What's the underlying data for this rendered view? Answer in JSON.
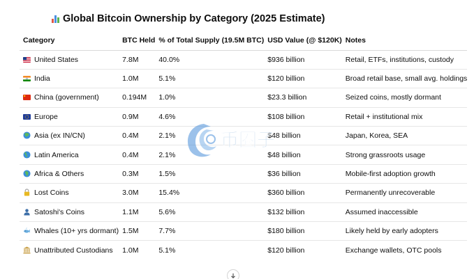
{
  "title": "Global Bitcoin Ownership by Category (2025 Estimate)",
  "columns": [
    "Category",
    "BTC Held",
    "% of Total Supply (19.5M BTC)",
    "USD Value (@ $120K)",
    "Notes"
  ],
  "rows": [
    {
      "category": "United States",
      "btc": "7.8M",
      "pct": "40.0%",
      "usd": "$936 billion",
      "notes": "Retail, ETFs, institutions, custody",
      "icon": "us-flag-icon"
    },
    {
      "category": "India",
      "btc": "1.0M",
      "pct": "5.1%",
      "usd": "$120 billion",
      "notes": "Broad retail base, small avg. holdings",
      "icon": "india-flag-icon"
    },
    {
      "category": "China (government)",
      "btc": "0.194M",
      "pct": "1.0%",
      "usd": "$23.3 billion",
      "notes": "Seized coins, mostly dormant",
      "icon": "china-flag-icon"
    },
    {
      "category": "Europe",
      "btc": "0.9M",
      "pct": "4.6%",
      "usd": "$108 billion",
      "notes": "Retail + institutional mix",
      "icon": "eu-flag-icon"
    },
    {
      "category": "Asia (ex IN/CN)",
      "btc": "0.4M",
      "pct": "2.1%",
      "usd": "$48 billion",
      "notes": "Japan, Korea, SEA",
      "icon": "globe-asia-icon"
    },
    {
      "category": "Latin America",
      "btc": "0.4M",
      "pct": "2.1%",
      "usd": "$48 billion",
      "notes": "Strong grassroots usage",
      "icon": "globe-americas-icon"
    },
    {
      "category": "Africa & Others",
      "btc": "0.3M",
      "pct": "1.5%",
      "usd": "$36 billion",
      "notes": "Mobile-first adoption growth",
      "icon": "globe-africa-icon"
    },
    {
      "category": "Lost Coins",
      "btc": "3.0M",
      "pct": "15.4%",
      "usd": "$360 billion",
      "notes": "Permanently unrecoverable",
      "icon": "lock-icon"
    },
    {
      "category": "Satoshi's Coins",
      "btc": "1.1M",
      "pct": "5.6%",
      "usd": "$132 billion",
      "notes": "Assumed inaccessible",
      "icon": "person-silhouette-icon"
    },
    {
      "category": "Whales (10+ yrs dormant)",
      "btc": "1.5M",
      "pct": "7.7%",
      "usd": "$180 billion",
      "notes": "Likely held by early adopters",
      "icon": "whale-icon"
    },
    {
      "category": "Unattributed Custodians",
      "btc": "1.0M",
      "pct": "5.1%",
      "usd": "$120 billion",
      "notes": "Exchange wallets, OTC pools",
      "icon": "bank-icon"
    }
  ],
  "watermark_text": "币圈子"
}
